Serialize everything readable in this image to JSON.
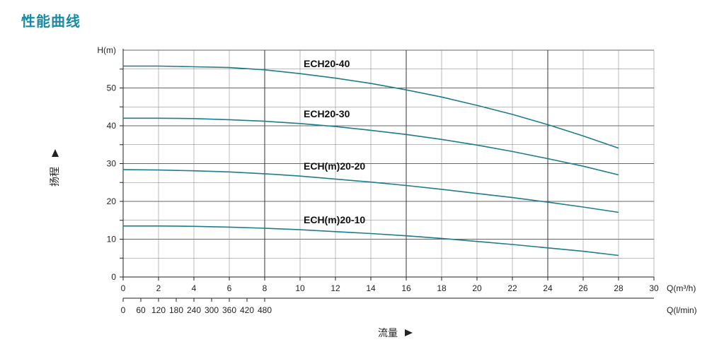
{
  "title": "性能曲线",
  "chart_data": {
    "type": "line",
    "ylabel_unit": "H(m)",
    "ylabel_cn": "扬程",
    "xlabel_cn": "流量",
    "x_unit_top": "Q(m³/h)",
    "x_unit_bottom": "Q(l/min)",
    "xlim": [
      0,
      30
    ],
    "ylim": [
      0,
      60
    ],
    "x_ticks": [
      "0",
      "2",
      "4",
      "6",
      "8",
      "10",
      "12",
      "14",
      "16",
      "18",
      "20",
      "22",
      "24",
      "26",
      "28",
      "30"
    ],
    "x_ticks_lmin": [
      "0",
      "60",
      "120",
      "180",
      "240",
      "300",
      "360",
      "420",
      "480"
    ],
    "y_ticks": [
      "0",
      "10",
      "20",
      "30",
      "40",
      "50"
    ],
    "colors": {
      "curve": "#1f7c8c",
      "title": "#1a8aa6",
      "grid": "#7a7a7a"
    },
    "series": [
      {
        "name": "ECH20-40",
        "x": [
          0,
          2,
          4,
          6,
          8,
          10,
          12,
          14,
          16,
          18,
          20,
          22,
          24,
          26,
          28
        ],
        "y": [
          55.8,
          55.8,
          55.6,
          55.4,
          54.8,
          53.8,
          52.6,
          51.2,
          49.5,
          47.6,
          45.4,
          43.0,
          40.3,
          37.3,
          34.1
        ]
      },
      {
        "name": "ECH20-30",
        "x": [
          0,
          2,
          4,
          6,
          8,
          10,
          12,
          14,
          16,
          18,
          20,
          22,
          24,
          26,
          28
        ],
        "y": [
          42.0,
          42.0,
          41.9,
          41.6,
          41.2,
          40.6,
          39.8,
          38.8,
          37.7,
          36.4,
          34.9,
          33.2,
          31.3,
          29.3,
          27.0
        ]
      },
      {
        "name": "ECH(m)20-20",
        "x": [
          0,
          2,
          4,
          6,
          8,
          10,
          12,
          14,
          16,
          18,
          20,
          22,
          24,
          26,
          28
        ],
        "y": [
          28.4,
          28.3,
          28.1,
          27.8,
          27.3,
          26.7,
          25.9,
          25.1,
          24.2,
          23.2,
          22.1,
          21.0,
          19.8,
          18.5,
          17.1
        ]
      },
      {
        "name": "ECH(m)20-10",
        "x": [
          0,
          2,
          4,
          6,
          8,
          10,
          12,
          14,
          16,
          18,
          20,
          22,
          24,
          26,
          28
        ],
        "y": [
          13.5,
          13.5,
          13.4,
          13.2,
          12.9,
          12.5,
          12.0,
          11.5,
          10.9,
          10.2,
          9.4,
          8.6,
          7.7,
          6.8,
          5.7
        ]
      }
    ]
  }
}
